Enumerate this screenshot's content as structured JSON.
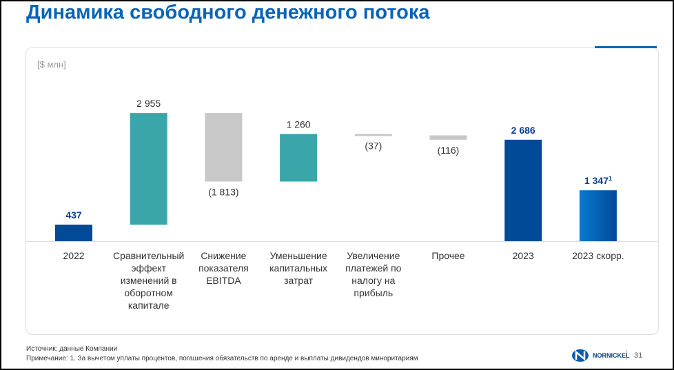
{
  "title": "Динамика свободного денежного потока",
  "chart_data": {
    "type": "waterfall",
    "unit_label": "[$ млн]",
    "categories": [
      "2022",
      "Сравнительный эффект изменений в оборотном капитале",
      "Снижение показателя EBITDA",
      "Уменьшение капитальных затрат",
      "Увеличение платежей по налогу на прибыль",
      "Прочее",
      "2023",
      "2023 скорр."
    ],
    "values": [
      437,
      2955,
      -1813,
      1260,
      -37,
      -116,
      2686,
      1347
    ],
    "kinds": [
      "total",
      "delta",
      "delta",
      "delta",
      "delta",
      "delta",
      "total",
      "total"
    ],
    "labels": [
      "437",
      "2 955",
      "(1 813)",
      "1 260",
      "(37)",
      "(116)",
      "2 686",
      "1 347"
    ],
    "label_superscripts": [
      "",
      "",
      "",
      "",
      "",
      "",
      "",
      "1"
    ],
    "colors": {
      "total": "#004a97",
      "increase": "#3aa6a9",
      "decrease": "#c8c8c8",
      "label_total": "#0a3d8f",
      "label_delta": "#333333"
    }
  },
  "footer": {
    "source": "Источник: данные Компании",
    "note": "Примечание: 1. За вычетом уплаты процентов, погашения обязательств по аренде и выплаты дивидендов миноритариям",
    "logo": "NORNICKEL",
    "page": "31"
  }
}
